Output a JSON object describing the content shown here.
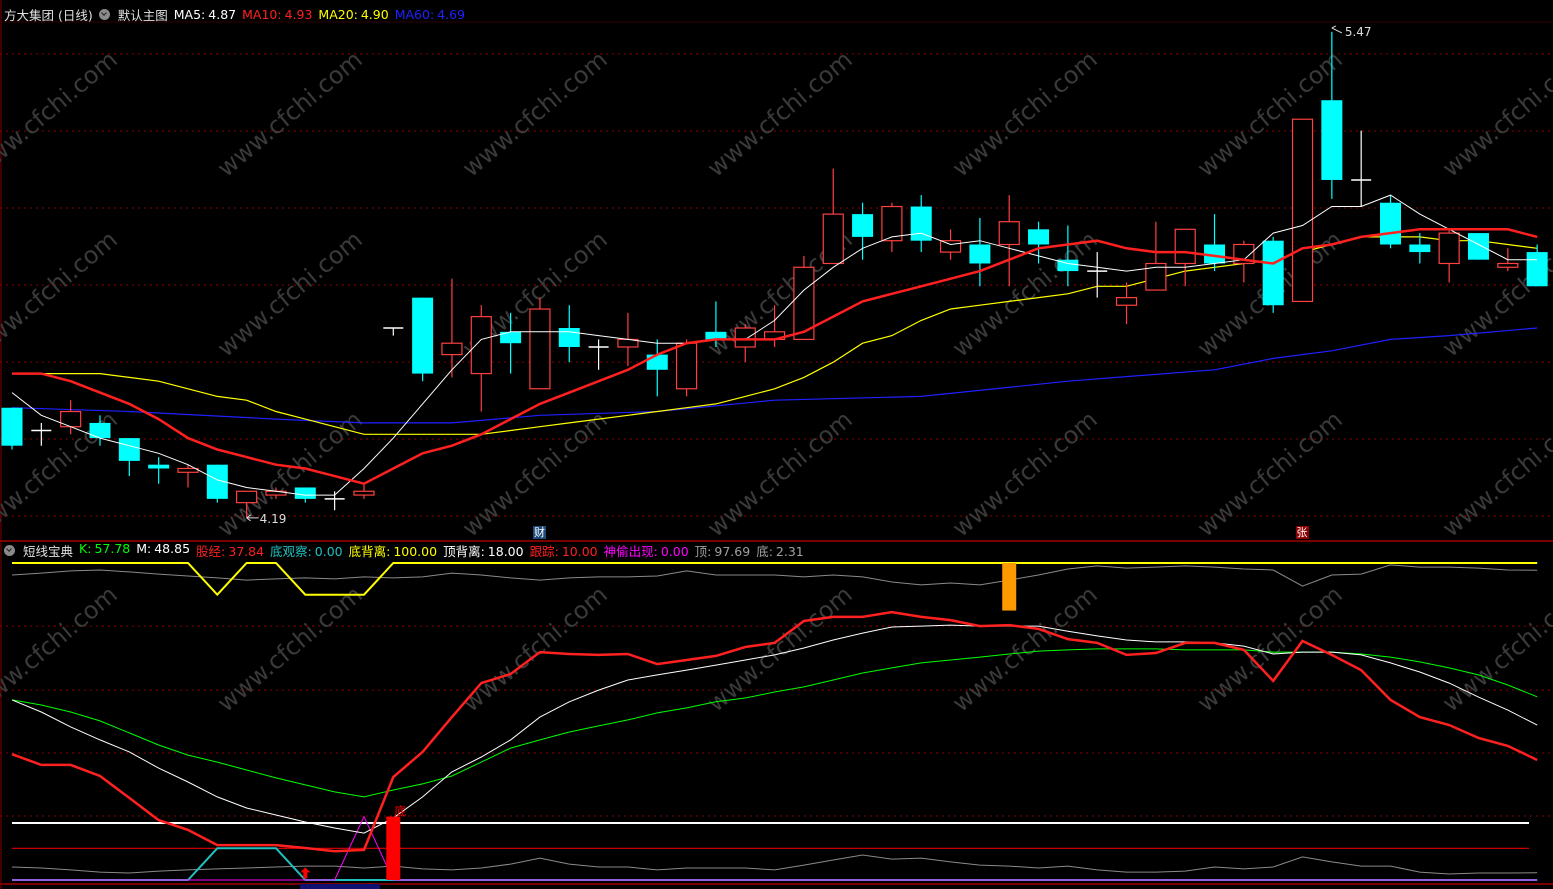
{
  "header": {
    "stock_title": "方大集团 (日线)",
    "main_chart_label": "默认主图",
    "ma": [
      {
        "label": "MA5:",
        "value": "4.87",
        "color": "#ffffff"
      },
      {
        "label": "MA10:",
        "value": "4.93",
        "color": "#ff2020"
      },
      {
        "label": "MA20:",
        "value": "4.90",
        "color": "#ffff00"
      },
      {
        "label": "MA60:",
        "value": "4.69",
        "color": "#2020ff"
      }
    ]
  },
  "indicator_header": {
    "name": "短线宝典",
    "items": [
      {
        "label": "K:",
        "value": "57.78",
        "color": "#00ff00"
      },
      {
        "label": "M:",
        "value": "48.85",
        "color": "#ffffff"
      },
      {
        "label": "股经:",
        "value": "37.84",
        "color": "#ff2020"
      },
      {
        "label": "底观察:",
        "value": "0.00",
        "color": "#20c0c0"
      },
      {
        "label": "底背离:",
        "value": "100.00",
        "color": "#ffff00"
      },
      {
        "label": "顶背离:",
        "value": "18.00",
        "color": "#ffffff"
      },
      {
        "label": "跟踪:",
        "value": "10.00",
        "color": "#ff2020"
      },
      {
        "label": "神偷出现:",
        "value": "0.00",
        "color": "#ff00ff"
      },
      {
        "label": "顶:",
        "value": "97.69",
        "color": "#a0a0a0"
      },
      {
        "label": "底:",
        "value": "2.31",
        "color": "#a0a0a0"
      }
    ]
  },
  "watermark": "www.cfchi.com",
  "markers": [
    {
      "text": "财",
      "candle": 19,
      "bg": "#1c4a7a",
      "color": "#ffffff"
    },
    {
      "text": "张",
      "candle": 45,
      "bg": "#8b0000",
      "color": "#ffffff"
    }
  ],
  "colors": {
    "up": "#ff4040",
    "down": "#00ffff",
    "doji": "#ffffff",
    "grid": "#8b0000",
    "ma5": "#ffffff",
    "ma10": "#ff2020",
    "ma20": "#ffff00",
    "ma60": "#2020ff"
  },
  "chart_data": [
    {
      "type": "candlestick",
      "title": "方大集团 (日线)",
      "ohlc_fields": [
        "open",
        "high",
        "low",
        "close"
      ],
      "candles": [
        [
          4.48,
          4.48,
          4.37,
          4.38
        ],
        [
          4.42,
          4.44,
          4.38,
          4.42
        ],
        [
          4.43,
          4.5,
          4.41,
          4.47
        ],
        [
          4.44,
          4.46,
          4.38,
          4.4
        ],
        [
          4.4,
          4.4,
          4.3,
          4.34
        ],
        [
          4.33,
          4.35,
          4.28,
          4.32
        ],
        [
          4.31,
          4.33,
          4.27,
          4.32
        ],
        [
          4.33,
          4.33,
          4.23,
          4.24
        ],
        [
          4.23,
          4.26,
          4.19,
          4.26
        ],
        [
          4.25,
          4.27,
          4.24,
          4.26
        ],
        [
          4.27,
          4.27,
          4.23,
          4.24
        ],
        [
          4.24,
          4.26,
          4.21,
          4.24
        ],
        [
          4.25,
          4.28,
          4.24,
          4.26
        ],
        [
          4.69,
          4.69,
          4.67,
          4.69
        ],
        [
          4.77,
          4.77,
          4.55,
          4.57
        ],
        [
          4.62,
          4.82,
          4.56,
          4.65
        ],
        [
          4.57,
          4.75,
          4.47,
          4.72
        ],
        [
          4.68,
          4.73,
          4.57,
          4.65
        ],
        [
          4.53,
          4.77,
          4.53,
          4.74
        ],
        [
          4.69,
          4.75,
          4.6,
          4.64
        ],
        [
          4.64,
          4.66,
          4.58,
          4.64
        ],
        [
          4.64,
          4.73,
          4.59,
          4.66
        ],
        [
          4.62,
          4.66,
          4.51,
          4.58
        ],
        [
          4.53,
          4.66,
          4.51,
          4.65
        ],
        [
          4.68,
          4.76,
          4.64,
          4.66
        ],
        [
          4.64,
          4.7,
          4.6,
          4.69
        ],
        [
          4.66,
          4.75,
          4.64,
          4.68
        ],
        [
          4.66,
          4.88,
          4.66,
          4.85
        ],
        [
          4.86,
          5.11,
          4.86,
          4.99
        ],
        [
          4.99,
          5.02,
          4.87,
          4.93
        ],
        [
          4.92,
          5.02,
          4.89,
          5.01
        ],
        [
          5.01,
          5.04,
          4.89,
          4.92
        ],
        [
          4.89,
          4.95,
          4.87,
          4.92
        ],
        [
          4.91,
          4.98,
          4.8,
          4.86
        ],
        [
          4.91,
          5.04,
          4.8,
          4.97
        ],
        [
          4.95,
          4.97,
          4.86,
          4.91
        ],
        [
          4.87,
          4.96,
          4.8,
          4.84
        ],
        [
          4.84,
          4.89,
          4.77,
          4.84
        ],
        [
          4.75,
          4.81,
          4.7,
          4.77
        ],
        [
          4.79,
          4.97,
          4.79,
          4.86
        ],
        [
          4.86,
          4.95,
          4.8,
          4.95
        ],
        [
          4.91,
          4.99,
          4.84,
          4.86
        ],
        [
          4.86,
          4.92,
          4.81,
          4.91
        ],
        [
          4.92,
          4.93,
          4.73,
          4.75
        ],
        [
          4.76,
          5.24,
          4.76,
          5.24
        ],
        [
          5.29,
          5.47,
          5.03,
          5.08
        ],
        [
          5.08,
          5.21,
          5.01,
          5.08
        ],
        [
          5.02,
          5.04,
          4.9,
          4.91
        ],
        [
          4.91,
          4.94,
          4.86,
          4.89
        ],
        [
          4.86,
          4.95,
          4.81,
          4.94
        ],
        [
          4.94,
          4.94,
          4.87,
          4.87
        ],
        [
          4.85,
          4.9,
          4.84,
          4.86
        ],
        [
          4.89,
          4.91,
          4.8,
          4.8
        ]
      ],
      "series": [
        {
          "name": "MA5",
          "values": [
            4.52,
            4.46,
            4.43,
            4.4,
            4.38,
            4.36,
            4.33,
            4.29,
            4.27,
            4.26,
            4.25,
            4.25,
            4.32,
            4.4,
            4.49,
            4.58,
            4.66,
            4.68,
            4.68,
            4.68,
            4.67,
            4.66,
            4.65,
            4.65,
            4.66,
            4.66,
            4.71,
            4.79,
            4.85,
            4.9,
            4.93,
            4.94,
            4.91,
            4.92,
            4.9,
            4.88,
            4.86,
            4.85,
            4.84,
            4.85,
            4.85,
            4.86,
            4.87,
            4.94,
            4.96,
            5.01,
            5.01,
            5.04,
            4.99,
            4.95,
            4.91,
            4.87,
            4.87
          ]
        },
        {
          "name": "MA10",
          "values": [
            4.57,
            4.57,
            4.55,
            4.52,
            4.49,
            4.45,
            4.4,
            4.37,
            4.35,
            4.33,
            4.32,
            4.3,
            4.28,
            4.32,
            4.36,
            4.38,
            4.41,
            4.45,
            4.49,
            4.52,
            4.55,
            4.58,
            4.62,
            4.65,
            4.66,
            4.66,
            4.66,
            4.68,
            4.72,
            4.76,
            4.78,
            4.8,
            4.82,
            4.84,
            4.87,
            4.9,
            4.91,
            4.92,
            4.9,
            4.89,
            4.89,
            4.88,
            4.87,
            4.86,
            4.9,
            4.91,
            4.93,
            4.94,
            4.95,
            4.95,
            4.95,
            4.95,
            4.93
          ]
        },
        {
          "name": "MA20",
          "values": [
            4.57,
            4.57,
            4.57,
            4.57,
            4.56,
            4.55,
            4.53,
            4.51,
            4.5,
            4.47,
            4.45,
            4.43,
            4.41,
            4.41,
            4.41,
            4.41,
            4.41,
            4.42,
            4.43,
            4.44,
            4.45,
            4.46,
            4.47,
            4.48,
            4.49,
            4.51,
            4.53,
            4.56,
            4.6,
            4.65,
            4.67,
            4.71,
            4.74,
            4.75,
            4.76,
            4.77,
            4.78,
            4.8,
            4.8,
            4.82,
            4.84,
            4.85,
            4.86,
            4.87,
            4.89,
            4.91,
            4.93,
            4.93,
            4.93,
            4.92,
            4.92,
            4.91,
            4.9
          ]
        },
        {
          "name": "MA60",
          "points": [
            [
              1,
              4.48
            ],
            [
              5,
              4.47
            ],
            [
              10,
              4.45
            ],
            [
              13,
              4.44
            ],
            [
              16,
              4.44
            ],
            [
              19,
              4.46
            ],
            [
              23,
              4.47
            ],
            [
              27,
              4.5
            ],
            [
              32,
              4.51
            ],
            [
              37,
              4.55
            ],
            [
              42,
              4.58
            ],
            [
              44,
              4.61
            ],
            [
              46,
              4.63
            ],
            [
              48,
              4.66
            ],
            [
              50,
              4.67
            ],
            [
              53,
              4.69
            ]
          ]
        }
      ],
      "annotations": [
        {
          "text": "5.47",
          "candle": 46,
          "price": 5.47,
          "kind": "high"
        },
        {
          "text": "4.19",
          "candle": 9,
          "price": 4.19,
          "kind": "low"
        }
      ],
      "grid": true
    },
    {
      "type": "line",
      "title": "短线宝典",
      "ylim": [
        0,
        100
      ],
      "series": [
        {
          "name": "K",
          "color": "#00ff00",
          "values": [
            56.8,
            55.2,
            53.0,
            50.2,
            46.4,
            42.6,
            39.4,
            37.2,
            34.7,
            32.2,
            30.0,
            27.8,
            26.2,
            28.4,
            30.3,
            32.8,
            37.2,
            41.6,
            44.2,
            46.7,
            48.6,
            50.5,
            52.7,
            54.3,
            56.2,
            57.4,
            59.3,
            60.9,
            63.1,
            65.3,
            66.9,
            68.5,
            69.4,
            70.3,
            71.3,
            72.2,
            72.6,
            72.9,
            72.9,
            72.9,
            72.6,
            72.6,
            72.6,
            71.9,
            71.9,
            71.9,
            71.3,
            70.3,
            68.8,
            66.9,
            64.7,
            61.5,
            57.78
          ]
        },
        {
          "name": "M",
          "color": "#ffffff",
          "values": [
            56.8,
            53.0,
            48.3,
            44.2,
            40.4,
            35.3,
            30.9,
            26.2,
            22.7,
            20.5,
            18.3,
            16.4,
            14.8,
            19.6,
            26.2,
            34.1,
            38.8,
            44.2,
            51.4,
            56.2,
            59.9,
            63.1,
            64.7,
            66.2,
            67.8,
            69.4,
            71.0,
            73.2,
            75.7,
            77.9,
            79.8,
            80.1,
            80.4,
            80.1,
            80.1,
            80.1,
            78.5,
            77.0,
            75.7,
            75.1,
            75.1,
            74.8,
            73.8,
            71.3,
            71.9,
            71.9,
            71.0,
            68.5,
            65.6,
            62.1,
            57.7,
            53.6,
            48.85
          ]
        },
        {
          "name": "股经",
          "color": "#ff2020",
          "values": [
            39.7,
            36.3,
            36.3,
            32.8,
            25.9,
            18.9,
            15.8,
            11.0,
            11.0,
            11.0,
            10.1,
            9.1,
            9.5,
            32.5,
            40.4,
            51.4,
            62.1,
            65.0,
            71.9,
            71.3,
            71.0,
            71.3,
            68.1,
            69.4,
            70.7,
            73.5,
            74.8,
            81.7,
            83.0,
            83.0,
            84.5,
            83.0,
            82.0,
            80.1,
            80.4,
            79.2,
            76.0,
            74.8,
            71.0,
            71.6,
            74.8,
            74.8,
            72.6,
            62.8,
            75.4,
            71.0,
            66.2,
            56.8,
            51.4,
            48.9,
            44.8,
            42.3,
            37.84
          ]
        },
        {
          "name": "底观察",
          "color": "#20c0c0",
          "values": [
            0,
            0,
            0,
            0,
            0,
            0,
            0,
            10,
            10,
            10,
            0,
            0,
            0,
            0,
            0,
            0,
            0,
            0,
            0,
            0,
            0,
            0,
            0,
            0,
            0,
            0,
            0,
            0,
            0,
            0,
            0,
            0,
            0,
            0,
            0,
            0,
            0,
            0,
            0,
            0,
            0,
            0,
            0,
            0,
            0,
            0,
            0,
            0,
            0,
            0,
            0,
            0,
            0
          ]
        },
        {
          "name": "底背离",
          "color": "#ffff00",
          "values": [
            100,
            100,
            100,
            100,
            100,
            100,
            100,
            90,
            100,
            100,
            90,
            90,
            90,
            100,
            100,
            100,
            100,
            100,
            100,
            100,
            100,
            100,
            100,
            100,
            100,
            100,
            100,
            100,
            100,
            100,
            100,
            100,
            100,
            100,
            100,
            100,
            100,
            100,
            100,
            100,
            100,
            100,
            100,
            100,
            100,
            100,
            100,
            100,
            100,
            100,
            100,
            100,
            100
          ]
        },
        {
          "name": "顶背离",
          "color": "#ffffff",
          "constant": 18
        },
        {
          "name": "跟踪",
          "color": "#ff2020",
          "constant": 10
        },
        {
          "name": "神偷出现",
          "color": "#ff00ff",
          "values": [
            0,
            0,
            0,
            0,
            0,
            0,
            0,
            0,
            0,
            0,
            0,
            0,
            20,
            0,
            0,
            0,
            0,
            0,
            0,
            0,
            0,
            0,
            0,
            0,
            0,
            0,
            0,
            0,
            0,
            0,
            0,
            0,
            0,
            0,
            0,
            0,
            0,
            0,
            0,
            0,
            0,
            0,
            0,
            0,
            0,
            0,
            0,
            0,
            0,
            0,
            0,
            0,
            0
          ]
        },
        {
          "name": "顶",
          "color": "#909090",
          "values": [
            96.2,
            96.8,
            97.5,
            97.8,
            97.2,
            96.5,
            95.9,
            95.3,
            94.6,
            95.0,
            95.3,
            95.0,
            95.6,
            95.3,
            95.6,
            96.8,
            96.2,
            95.3,
            94.6,
            95.3,
            95.6,
            95.6,
            95.9,
            97.5,
            96.2,
            96.2,
            96.2,
            95.6,
            96.2,
            95.6,
            94.0,
            93.1,
            93.7,
            93.1,
            94.6,
            96.2,
            98.1,
            99.1,
            98.4,
            98.7,
            99.1,
            98.7,
            98.1,
            97.8,
            92.7,
            96.2,
            96.5,
            99.4,
            98.7,
            98.7,
            98.4,
            97.8,
            97.69
          ]
        },
        {
          "name": "底",
          "color": "#909090",
          "values": [
            4.1,
            3.8,
            3.2,
            2.5,
            2.2,
            2.8,
            3.2,
            3.5,
            3.8,
            4.1,
            4.4,
            4.4,
            3.8,
            4.4,
            3.5,
            3.2,
            3.8,
            5.0,
            6.9,
            5.0,
            4.1,
            4.1,
            3.2,
            3.8,
            3.8,
            3.8,
            3.2,
            4.7,
            6.3,
            7.9,
            6.6,
            6.9,
            5.7,
            4.7,
            4.4,
            3.8,
            4.4,
            3.2,
            2.5,
            2.5,
            2.8,
            4.1,
            3.5,
            4.1,
            7.3,
            5.7,
            4.4,
            4.4,
            2.5,
            1.9,
            2.2,
            2.2,
            2.31
          ]
        }
      ],
      "signals": [
        {
          "type": "bar",
          "candle": 14,
          "from": 0,
          "to": 20,
          "color": "#ff0000",
          "label": "底"
        },
        {
          "type": "bar",
          "candle": 35,
          "from": 85,
          "to": 100,
          "color": "#ff9900"
        },
        {
          "type": "arrow-up",
          "candle": 11,
          "color": "#ff0000"
        }
      ]
    }
  ]
}
